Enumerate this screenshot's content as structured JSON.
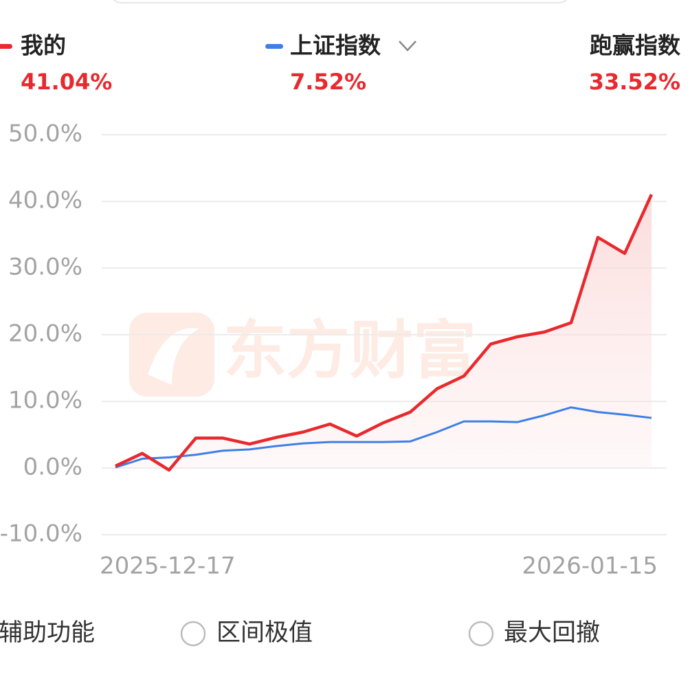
{
  "chart_data": {
    "type": "line",
    "categories": [
      "2025-12-17",
      null,
      null,
      null,
      null,
      null,
      null,
      null,
      null,
      null,
      null,
      null,
      null,
      null,
      null,
      null,
      null,
      null,
      null,
      null,
      "2026-01-15"
    ],
    "series": [
      {
        "name": "我的",
        "color": "#e8292e",
        "values": [
          0.3,
          2.2,
          -0.3,
          4.5,
          4.5,
          3.6,
          4.6,
          5.4,
          6.6,
          4.8,
          6.8,
          8.4,
          11.9,
          13.8,
          18.6,
          19.7,
          20.4,
          21.8,
          34.6,
          32.2,
          41.04
        ]
      },
      {
        "name": "上证指数",
        "color": "#3d7fe6",
        "values": [
          0.1,
          1.4,
          1.6,
          2.0,
          2.6,
          2.8,
          3.3,
          3.7,
          3.9,
          3.9,
          3.9,
          4.0,
          5.4,
          7.0,
          7.0,
          6.9,
          7.9,
          9.1,
          8.4,
          8.0,
          7.52
        ]
      }
    ],
    "ylim": [
      -10,
      50
    ],
    "yticks": [
      {
        "value": -10,
        "label": "-10.0%"
      },
      {
        "value": 0,
        "label": "0.0%"
      },
      {
        "value": 10,
        "label": "10.0%"
      },
      {
        "value": 20,
        "label": "20.0%"
      },
      {
        "value": 30,
        "label": "30.0%"
      },
      {
        "value": 40,
        "label": "40.0%"
      },
      {
        "value": 50,
        "label": "50.0%"
      }
    ],
    "grid": true,
    "watermark": "东方财富"
  },
  "header": {
    "mine_return": "41.04%",
    "index_return": "7.52%",
    "excess_label": "跑赢指数",
    "excess_return": "33.52%"
  },
  "footer": {
    "options": [
      "辅助功能",
      "区间极值",
      "最大回撤"
    ]
  }
}
